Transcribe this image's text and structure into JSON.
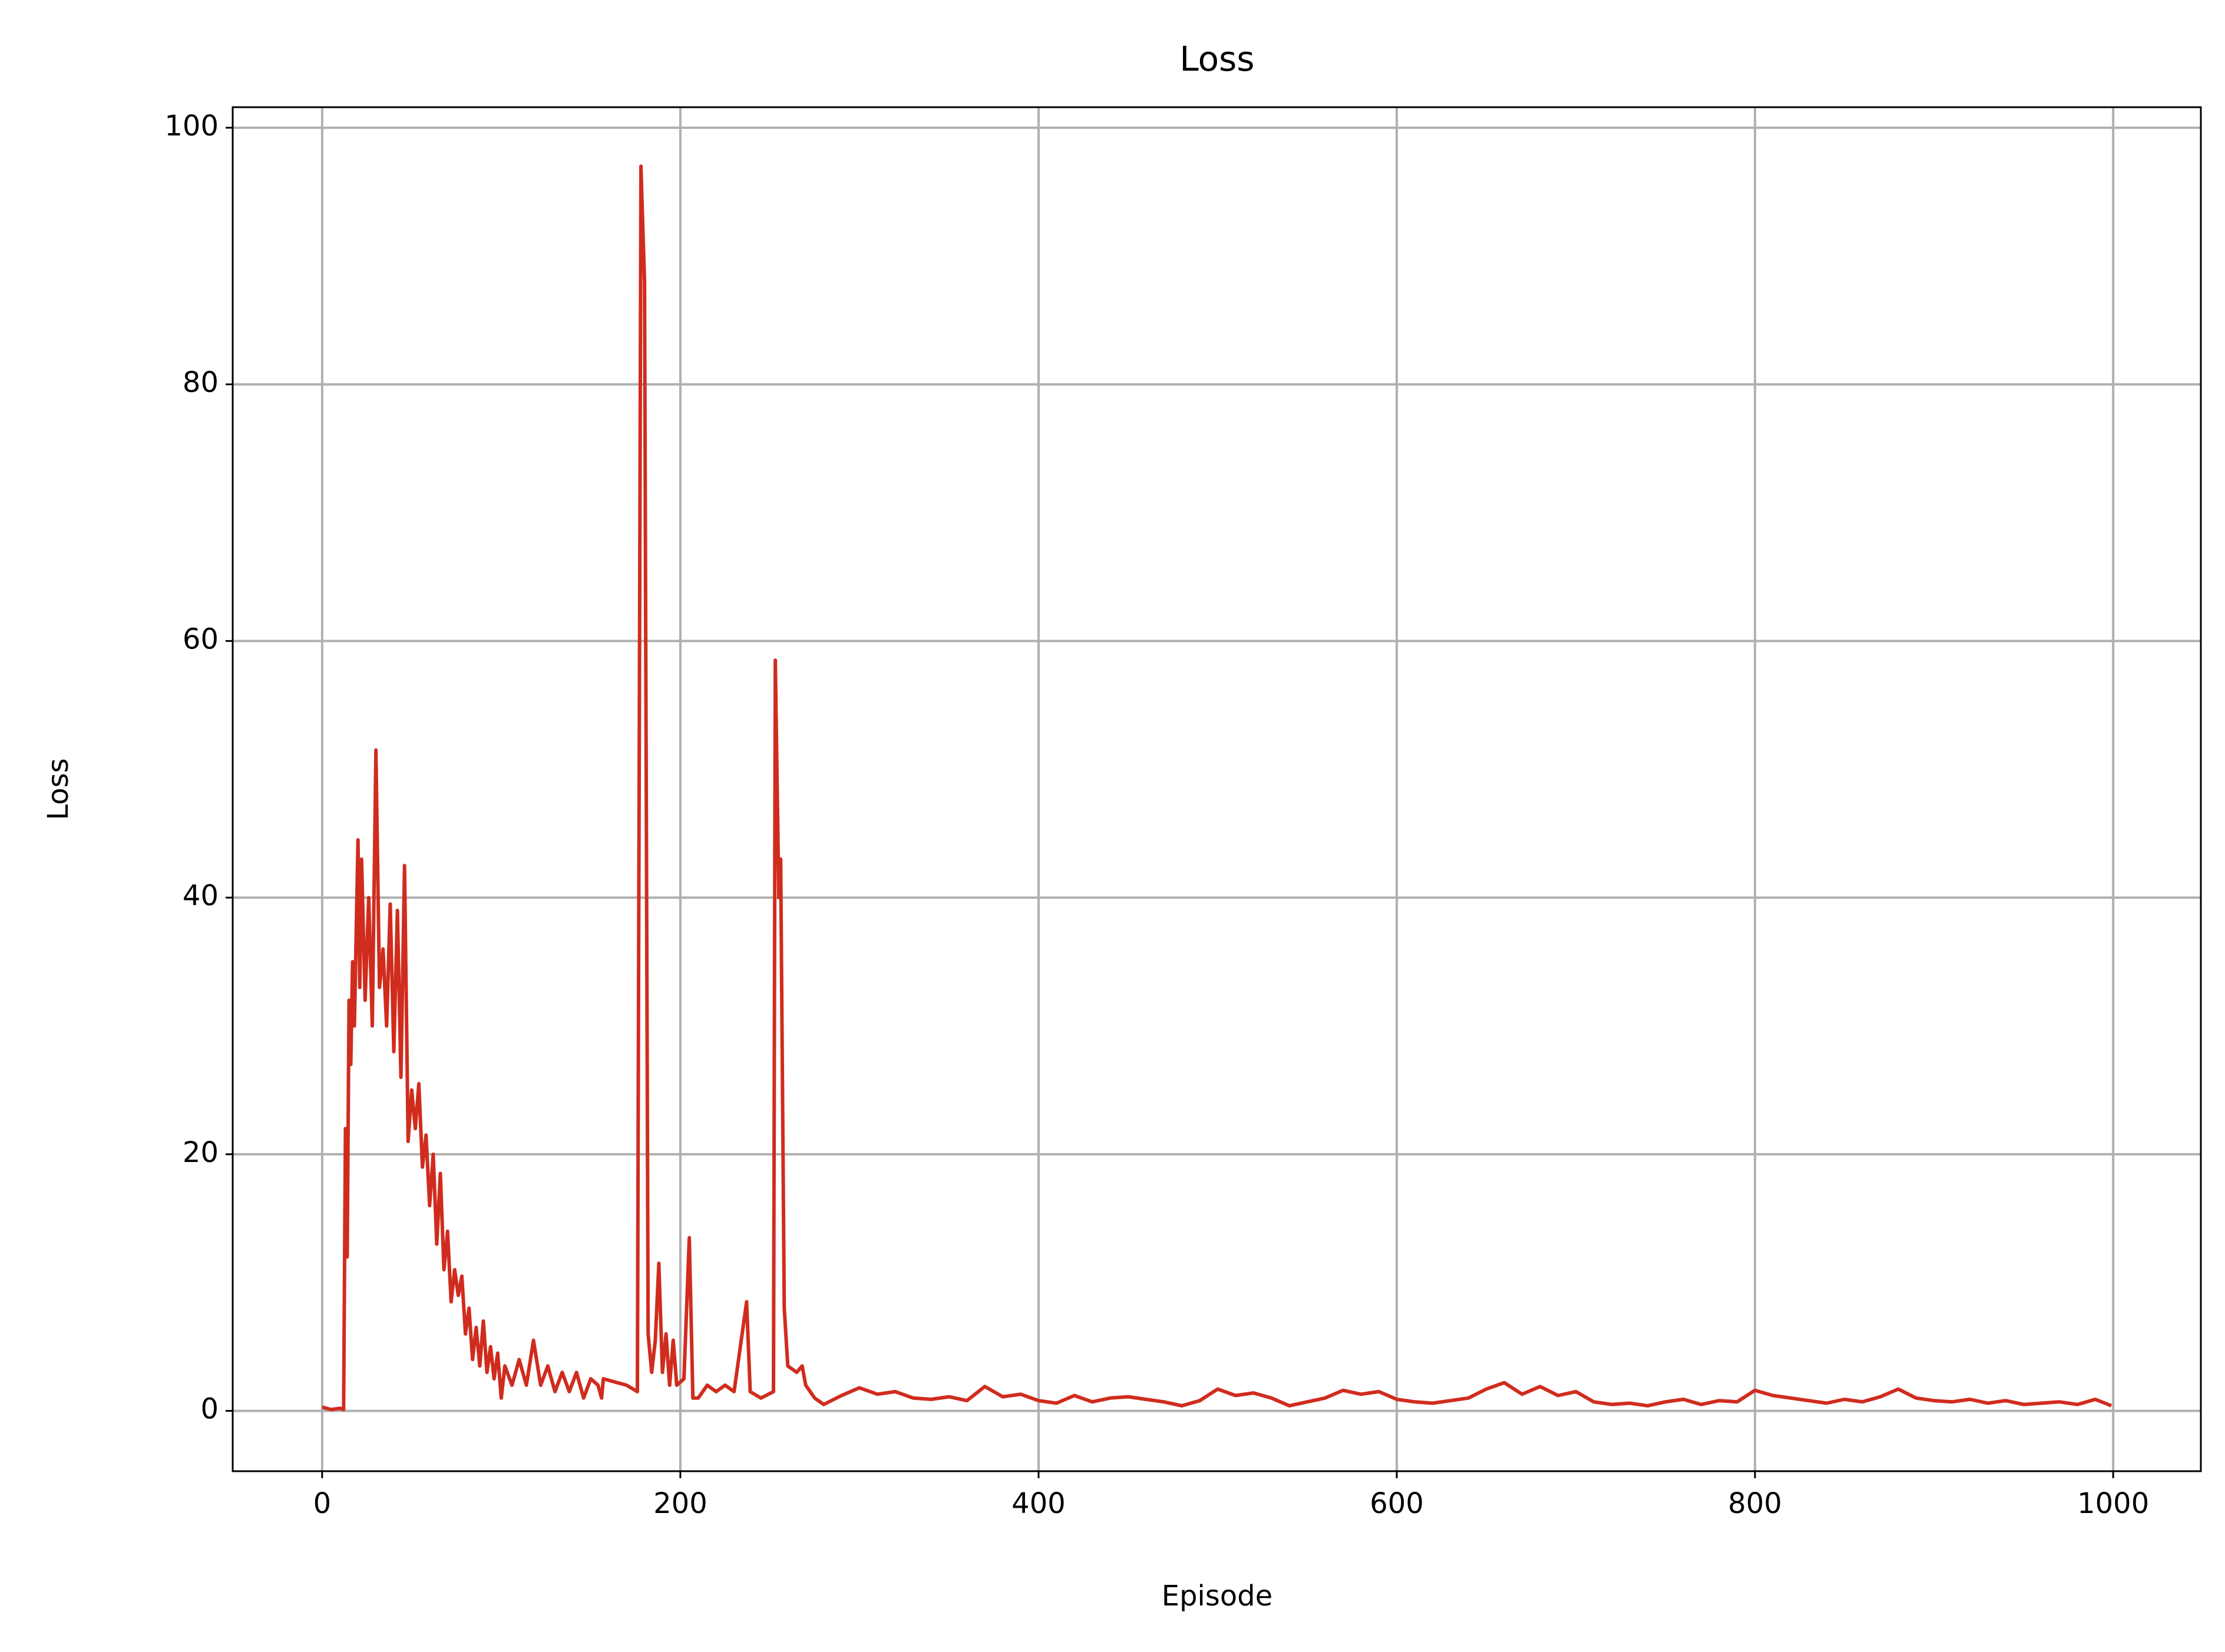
{
  "chart_data": {
    "type": "line",
    "title": "Loss",
    "x_label": "Episode",
    "y_label": "Loss",
    "color": "#d02c1e",
    "grid": true,
    "x": [
      0,
      5,
      10,
      12,
      13,
      14,
      15,
      16,
      17,
      18,
      20,
      21,
      22,
      24,
      26,
      28,
      30,
      32,
      34,
      36,
      38,
      40,
      42,
      44,
      46,
      48,
      50,
      52,
      54,
      56,
      58,
      60,
      62,
      64,
      66,
      68,
      70,
      72,
      74,
      76,
      78,
      80,
      82,
      84,
      86,
      88,
      90,
      92,
      94,
      96,
      98,
      100,
      102,
      106,
      110,
      114,
      118,
      122,
      126,
      130,
      134,
      138,
      142,
      146,
      150,
      154,
      156,
      157,
      170,
      176,
      178,
      180,
      182,
      184,
      186,
      188,
      190,
      192,
      194,
      196,
      198,
      202,
      205,
      207,
      210,
      215,
      220,
      225,
      230,
      237,
      239,
      245,
      252,
      253,
      255,
      256,
      258,
      260,
      265,
      268,
      270,
      275,
      280,
      290,
      300,
      310,
      320,
      330,
      340,
      350,
      360,
      370,
      380,
      390,
      400,
      410,
      420,
      430,
      440,
      450,
      460,
      470,
      480,
      490,
      500,
      510,
      520,
      530,
      540,
      550,
      560,
      570,
      580,
      590,
      600,
      610,
      620,
      630,
      640,
      650,
      660,
      670,
      680,
      690,
      700,
      710,
      720,
      730,
      740,
      750,
      760,
      770,
      780,
      790,
      800,
      810,
      820,
      830,
      840,
      850,
      860,
      870,
      880,
      890,
      900,
      910,
      920,
      930,
      940,
      950,
      960,
      970,
      980,
      990,
      999
    ],
    "values": [
      0.3,
      0.1,
      0.2,
      0.1,
      22,
      12,
      32,
      27,
      35,
      30,
      44.5,
      33,
      43,
      32,
      40,
      30,
      51.5,
      33,
      36,
      30,
      39.5,
      28,
      39,
      26,
      42.5,
      21,
      25,
      22,
      25.5,
      19,
      21.5,
      16,
      20,
      13,
      18.5,
      11,
      14,
      8.5,
      11,
      9,
      10.5,
      6,
      8,
      4,
      6.5,
      3.5,
      7,
      3,
      5,
      2.5,
      4.5,
      1,
      3.5,
      2,
      4,
      2,
      5.5,
      2,
      3.5,
      1.5,
      3,
      1.5,
      3,
      1,
      2.5,
      2,
      1,
      2.5,
      2,
      1.5,
      97,
      88,
      6,
      3,
      5.5,
      11.5,
      3,
      6,
      2,
      5.5,
      2,
      2.5,
      13.5,
      1,
      1,
      2,
      1.5,
      2,
      1.5,
      8.5,
      1.5,
      1,
      1.5,
      58.5,
      40,
      43,
      8,
      3.5,
      3,
      3.5,
      2,
      1,
      0.5,
      1.2,
      1.8,
      1.3,
      1.5,
      1.0,
      0.9,
      1.1,
      0.8,
      1.9,
      1.1,
      1.3,
      0.8,
      0.6,
      1.2,
      0.7,
      1.0,
      1.1,
      0.9,
      0.7,
      0.4,
      0.8,
      1.7,
      1.2,
      1.4,
      1.0,
      0.4,
      0.7,
      1.0,
      1.6,
      1.3,
      1.5,
      0.9,
      0.7,
      0.6,
      0.8,
      1.0,
      1.7,
      2.2,
      1.3,
      1.9,
      1.2,
      1.5,
      0.7,
      0.5,
      0.6,
      0.4,
      0.7,
      0.9,
      0.5,
      0.8,
      0.7,
      1.6,
      1.2,
      1.0,
      0.8,
      0.6,
      0.9,
      0.7,
      1.1,
      1.7,
      1.0,
      0.8,
      0.7,
      0.9,
      0.6,
      0.8,
      0.5,
      0.6,
      0.7,
      0.5,
      0.9,
      0.4
    ],
    "xlim": [
      -49.95,
      1048.95
    ],
    "ylim": [
      -4.7,
      101.6
    ],
    "xticks": [
      0,
      200,
      400,
      600,
      800,
      1000
    ],
    "yticks": [
      0,
      20,
      40,
      60,
      80,
      100
    ]
  }
}
